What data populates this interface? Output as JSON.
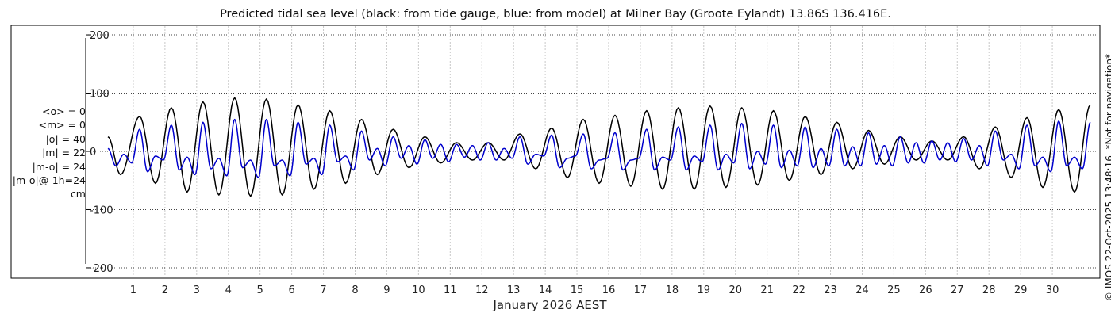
{
  "chart_data": {
    "type": "line",
    "title": "Predicted tidal sea level (black: from tide gauge, blue: from model) at Milner Bay (Groote Eylandt) 13.86S 136.416E.",
    "xlabel": "January 2026 AEST",
    "ylabel": "",
    "ylim": [
      -230,
      230
    ],
    "yticks": [
      -200,
      -100,
      0,
      100,
      200
    ],
    "xticks": [
      1,
      2,
      3,
      4,
      5,
      6,
      7,
      8,
      9,
      10,
      11,
      12,
      13,
      14,
      15,
      16,
      17,
      18,
      19,
      20,
      21,
      22,
      23,
      24,
      25,
      26,
      27,
      28,
      29,
      30
    ],
    "xlim": [
      0.2,
      31.2
    ],
    "grid": true,
    "series": [
      {
        "name": "black: from tide gauge",
        "color": "#000000",
        "peaks": [
          [
            0.2,
            25
          ],
          [
            0.6,
            -40
          ],
          [
            1.2,
            60
          ],
          [
            1.7,
            -55
          ],
          [
            2.2,
            75
          ],
          [
            2.7,
            -70
          ],
          [
            3.2,
            85
          ],
          [
            3.7,
            -75
          ],
          [
            4.2,
            92
          ],
          [
            4.7,
            -77
          ],
          [
            5.2,
            90
          ],
          [
            5.7,
            -75
          ],
          [
            6.2,
            80
          ],
          [
            6.7,
            -65
          ],
          [
            7.2,
            70
          ],
          [
            7.7,
            -55
          ],
          [
            8.2,
            55
          ],
          [
            8.7,
            -40
          ],
          [
            9.2,
            38
          ],
          [
            9.7,
            -28
          ],
          [
            10.2,
            25
          ],
          [
            10.7,
            -20
          ],
          [
            11.2,
            15
          ],
          [
            11.7,
            -15
          ],
          [
            12.2,
            15
          ],
          [
            12.7,
            -15
          ],
          [
            13.2,
            30
          ],
          [
            13.7,
            -30
          ],
          [
            14.2,
            40
          ],
          [
            14.7,
            -45
          ],
          [
            15.2,
            55
          ],
          [
            15.7,
            -55
          ],
          [
            16.2,
            62
          ],
          [
            16.7,
            -60
          ],
          [
            17.2,
            70
          ],
          [
            17.7,
            -65
          ],
          [
            18.2,
            75
          ],
          [
            18.7,
            -65
          ],
          [
            19.2,
            78
          ],
          [
            19.7,
            -62
          ],
          [
            20.2,
            75
          ],
          [
            20.7,
            -58
          ],
          [
            21.2,
            70
          ],
          [
            21.7,
            -50
          ],
          [
            22.2,
            60
          ],
          [
            22.7,
            -40
          ],
          [
            23.2,
            50
          ],
          [
            23.7,
            -30
          ],
          [
            24.2,
            36
          ],
          [
            24.7,
            -22
          ],
          [
            25.2,
            25
          ],
          [
            25.7,
            -15
          ],
          [
            26.2,
            18
          ],
          [
            26.7,
            -15
          ],
          [
            27.2,
            25
          ],
          [
            27.7,
            -30
          ],
          [
            28.2,
            42
          ],
          [
            28.7,
            -45
          ],
          [
            29.2,
            58
          ],
          [
            29.7,
            -62
          ],
          [
            30.2,
            72
          ],
          [
            30.7,
            -70
          ],
          [
            31.2,
            80
          ]
        ]
      },
      {
        "name": "blue: from model",
        "color": "#0000cc",
        "peaks": [
          [
            0.2,
            5
          ],
          [
            0.45,
            -25
          ],
          [
            0.7,
            -5
          ],
          [
            0.95,
            -20
          ],
          [
            1.2,
            38
          ],
          [
            1.45,
            -35
          ],
          [
            1.7,
            -8
          ],
          [
            1.95,
            -15
          ],
          [
            2.2,
            45
          ],
          [
            2.45,
            -32
          ],
          [
            2.7,
            -10
          ],
          [
            2.95,
            -40
          ],
          [
            3.2,
            50
          ],
          [
            3.45,
            -30
          ],
          [
            3.7,
            -12
          ],
          [
            3.95,
            -42
          ],
          [
            4.2,
            55
          ],
          [
            4.45,
            -28
          ],
          [
            4.7,
            -15
          ],
          [
            4.95,
            -45
          ],
          [
            5.2,
            55
          ],
          [
            5.45,
            -25
          ],
          [
            5.7,
            -15
          ],
          [
            5.95,
            -42
          ],
          [
            6.2,
            50
          ],
          [
            6.45,
            -22
          ],
          [
            6.7,
            -12
          ],
          [
            6.95,
            -40
          ],
          [
            7.2,
            45
          ],
          [
            7.45,
            -18
          ],
          [
            7.7,
            -8
          ],
          [
            7.95,
            -32
          ],
          [
            8.2,
            35
          ],
          [
            8.45,
            -15
          ],
          [
            8.7,
            5
          ],
          [
            8.95,
            -25
          ],
          [
            9.2,
            25
          ],
          [
            9.45,
            -12
          ],
          [
            9.7,
            10
          ],
          [
            9.95,
            -22
          ],
          [
            10.2,
            20
          ],
          [
            10.45,
            -12
          ],
          [
            10.7,
            12
          ],
          [
            10.95,
            -18
          ],
          [
            11.2,
            12
          ],
          [
            11.45,
            -10
          ],
          [
            11.7,
            10
          ],
          [
            11.95,
            -15
          ],
          [
            12.2,
            15
          ],
          [
            12.45,
            -15
          ],
          [
            12.7,
            5
          ],
          [
            12.95,
            -12
          ],
          [
            13.2,
            25
          ],
          [
            13.45,
            -22
          ],
          [
            13.7,
            -5
          ],
          [
            13.95,
            -8
          ],
          [
            14.2,
            28
          ],
          [
            14.45,
            -28
          ],
          [
            14.7,
            -12
          ],
          [
            14.95,
            -8
          ],
          [
            15.2,
            30
          ],
          [
            15.45,
            -30
          ],
          [
            15.7,
            -15
          ],
          [
            15.95,
            -12
          ],
          [
            16.2,
            32
          ],
          [
            16.45,
            -32
          ],
          [
            16.7,
            -15
          ],
          [
            16.95,
            -12
          ],
          [
            17.2,
            38
          ],
          [
            17.45,
            -32
          ],
          [
            17.7,
            -10
          ],
          [
            17.95,
            -15
          ],
          [
            18.2,
            42
          ],
          [
            18.45,
            -32
          ],
          [
            18.7,
            -8
          ],
          [
            18.95,
            -18
          ],
          [
            19.2,
            45
          ],
          [
            19.45,
            -32
          ],
          [
            19.7,
            -5
          ],
          [
            19.95,
            -20
          ],
          [
            20.2,
            48
          ],
          [
            20.45,
            -30
          ],
          [
            20.7,
            0
          ],
          [
            20.95,
            -22
          ],
          [
            21.2,
            45
          ],
          [
            21.45,
            -28
          ],
          [
            21.7,
            2
          ],
          [
            21.95,
            -25
          ],
          [
            22.2,
            42
          ],
          [
            22.45,
            -28
          ],
          [
            22.7,
            5
          ],
          [
            22.95,
            -25
          ],
          [
            23.2,
            38
          ],
          [
            23.45,
            -25
          ],
          [
            23.7,
            8
          ],
          [
            23.95,
            -25
          ],
          [
            24.2,
            32
          ],
          [
            24.45,
            -22
          ],
          [
            24.7,
            10
          ],
          [
            24.95,
            -25
          ],
          [
            25.2,
            25
          ],
          [
            25.45,
            -20
          ],
          [
            25.7,
            15
          ],
          [
            25.95,
            -20
          ],
          [
            26.2,
            18
          ],
          [
            26.45,
            -15
          ],
          [
            26.7,
            15
          ],
          [
            26.95,
            -18
          ],
          [
            27.2,
            22
          ],
          [
            27.45,
            -15
          ],
          [
            27.7,
            10
          ],
          [
            27.95,
            -25
          ],
          [
            28.2,
            35
          ],
          [
            28.45,
            -15
          ],
          [
            28.7,
            -5
          ],
          [
            28.95,
            -30
          ],
          [
            29.2,
            45
          ],
          [
            29.45,
            -25
          ],
          [
            29.7,
            -10
          ],
          [
            29.95,
            -35
          ],
          [
            30.2,
            52
          ],
          [
            30.45,
            -25
          ],
          [
            30.7,
            -10
          ],
          [
            30.95,
            -30
          ],
          [
            31.2,
            50
          ]
        ]
      }
    ]
  },
  "stats": [
    "<o> = 0",
    "<m> = 0",
    "|o| = 40",
    "|m| = 22",
    "|m-o| = 24",
    "|m-o|@-1h=24",
    "cm"
  ],
  "copyright": "© IMOS 22-Oct-2025 13:48:16. *Not for navigation*"
}
